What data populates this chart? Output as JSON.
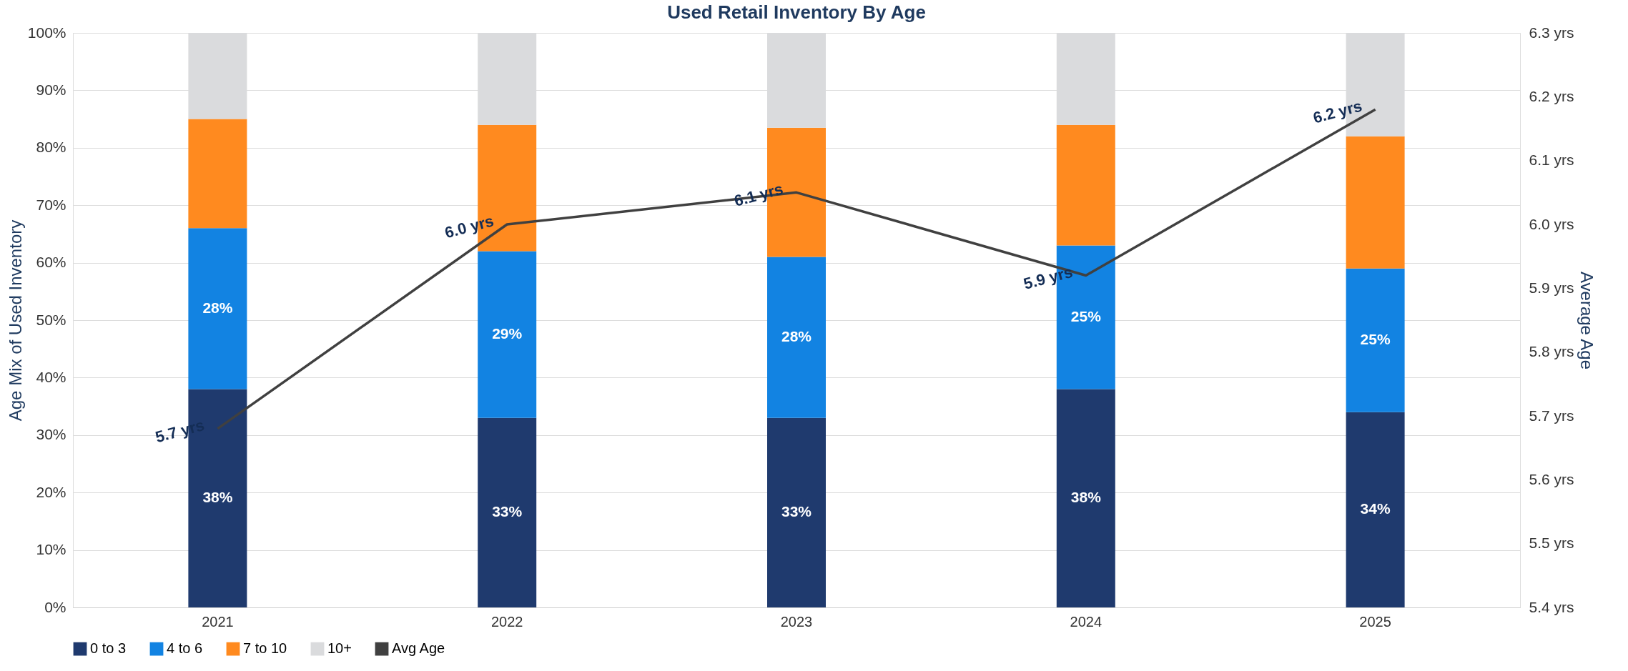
{
  "chart_data": {
    "type": "bar",
    "title": "Used Retail Inventory By Age",
    "ylabel": "Age Mix of Used Inventory",
    "y2label": "Average Age",
    "categories": [
      "2021",
      "2022",
      "2023",
      "2024",
      "2025"
    ],
    "stacked": true,
    "series": [
      {
        "name": "0 to 3",
        "color": "#1f3a6e",
        "values": [
          38,
          33,
          33,
          38,
          34
        ],
        "value_labels": [
          "38%",
          "33%",
          "33%",
          "38%",
          "34%"
        ]
      },
      {
        "name": "4 to 6",
        "color": "#1283e2",
        "values": [
          28,
          29,
          28,
          25,
          25
        ],
        "value_labels": [
          "28%",
          "29%",
          "28%",
          "25%",
          "25%"
        ]
      },
      {
        "name": "7 to 10",
        "color": "#ff8a1f",
        "values": [
          19,
          22,
          22.5,
          21,
          23
        ]
      },
      {
        "name": "10+",
        "color": "#dadbdd",
        "values": [
          15,
          16,
          16.5,
          16,
          18
        ]
      },
      {
        "name": "Avg Age",
        "type": "line",
        "axis": "y2",
        "color": "#404040",
        "values": [
          5.68,
          6.0,
          6.05,
          5.92,
          6.18
        ],
        "value_labels": [
          "5.7 yrs",
          "6.0 yrs",
          "6.1 yrs",
          "5.9 yrs",
          "6.2 yrs"
        ]
      }
    ],
    "ylim": [
      0,
      100
    ],
    "yticks": [
      {
        "value": 0,
        "label": "0%"
      },
      {
        "value": 10,
        "label": "10%"
      },
      {
        "value": 20,
        "label": "20%"
      },
      {
        "value": 30,
        "label": "30%"
      },
      {
        "value": 40,
        "label": "40%"
      },
      {
        "value": 50,
        "label": "50%"
      },
      {
        "value": 60,
        "label": "60%"
      },
      {
        "value": 70,
        "label": "70%"
      },
      {
        "value": 80,
        "label": "80%"
      },
      {
        "value": 90,
        "label": "90%"
      },
      {
        "value": 100,
        "label": "100%"
      }
    ],
    "y2lim": [
      5.4,
      6.3
    ],
    "y2ticks": [
      {
        "value": 5.4,
        "label": "5.4 yrs"
      },
      {
        "value": 5.5,
        "label": "5.5 yrs"
      },
      {
        "value": 5.6,
        "label": "5.6 yrs"
      },
      {
        "value": 5.7,
        "label": "5.7 yrs"
      },
      {
        "value": 5.8,
        "label": "5.8 yrs"
      },
      {
        "value": 5.9,
        "label": "5.9 yrs"
      },
      {
        "value": 6.0,
        "label": "6.0 yrs"
      },
      {
        "value": 6.1,
        "label": "6.1 yrs"
      },
      {
        "value": 6.2,
        "label": "6.2 yrs"
      },
      {
        "value": 6.3,
        "label": "6.3 yrs"
      }
    ],
    "grid": "y",
    "legend": "bottom",
    "line_style": "solid",
    "marker": "none"
  }
}
